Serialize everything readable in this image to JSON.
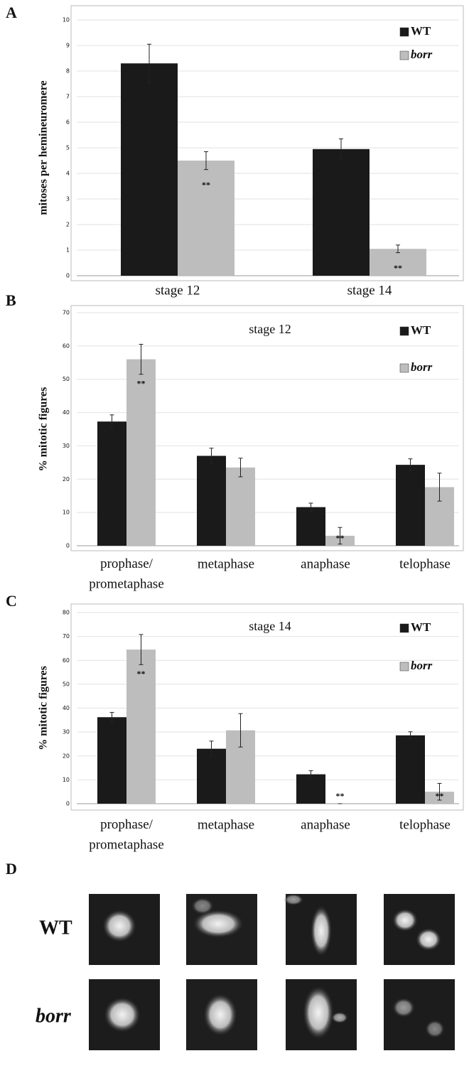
{
  "panels": [
    "A",
    "B",
    "C",
    "D"
  ],
  "images": {
    "rows": [
      "WT",
      "borr"
    ]
  },
  "chart_data": [
    {
      "type": "bar",
      "ylabel": "mitoses per hemineuromere",
      "categories": [
        "stage 12",
        "stage 14"
      ],
      "series": [
        {
          "name": "WT",
          "color": "#1a1a1a",
          "values": [
            8.3,
            4.95
          ],
          "errors": [
            0.75,
            0.4
          ]
        },
        {
          "name": "borr",
          "color": "#bdbdbd",
          "values": [
            4.5,
            1.05
          ],
          "errors": [
            0.35,
            0.15
          ],
          "annotations": [
            "**",
            "**"
          ]
        }
      ],
      "ylim": [
        0,
        10
      ],
      "yticks": [
        0,
        1,
        2,
        3,
        4,
        5,
        6,
        7,
        8,
        9,
        10
      ],
      "grid": true,
      "legend": "top-right"
    },
    {
      "type": "bar",
      "title": "stage 12",
      "ylabel": "% mitotic figures",
      "categories": [
        "prophase/\nprometaphase",
        "metaphase",
        "anaphase",
        "telophase"
      ],
      "series": [
        {
          "name": "WT",
          "color": "#1a1a1a",
          "values": [
            37.3,
            27,
            11.6,
            24.3
          ],
          "errors": [
            2,
            2.3,
            1.2,
            1.8
          ]
        },
        {
          "name": "borr",
          "color": "#bdbdbd",
          "values": [
            56,
            23.5,
            3,
            17.6
          ],
          "errors": [
            4.5,
            2.8,
            2.5,
            4.2
          ],
          "annotations": [
            "**",
            null,
            "**",
            null
          ]
        }
      ],
      "ylim": [
        0,
        70
      ],
      "yticks": [
        0,
        10,
        20,
        30,
        40,
        50,
        60,
        70
      ],
      "grid": true,
      "legend": "top-right"
    },
    {
      "type": "bar",
      "title": "stage 14",
      "ylabel": "% mitotic figures",
      "categories": [
        "prophase/\nprometaphase",
        "metaphase",
        "anaphase",
        "telophase"
      ],
      "series": [
        {
          "name": "WT",
          "color": "#1a1a1a",
          "values": [
            36.2,
            23,
            12.3,
            28.6
          ],
          "errors": [
            2,
            3.2,
            1.5,
            1.5
          ]
        },
        {
          "name": "borr",
          "color": "#bdbdbd",
          "values": [
            64.5,
            30.7,
            0,
            5
          ],
          "errors": [
            6.3,
            7,
            0,
            3.5
          ],
          "annotations": [
            "**",
            null,
            "**",
            "**"
          ]
        }
      ],
      "ylim": [
        0,
        80
      ],
      "yticks": [
        0,
        10,
        20,
        30,
        40,
        50,
        60,
        70,
        80
      ],
      "grid": true,
      "legend": "top-right"
    }
  ]
}
